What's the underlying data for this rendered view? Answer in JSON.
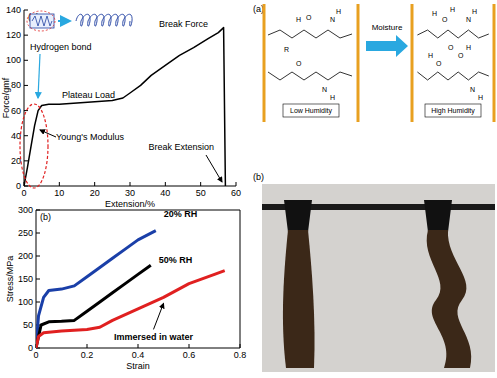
{
  "chart_data": [
    {
      "type": "line",
      "panel_label": "(a)",
      "x_label": "Extension/%",
      "y_label": "Force/gmf",
      "x": [
        0,
        1,
        2,
        3,
        4,
        5,
        7,
        10,
        15,
        20,
        25,
        28,
        30,
        33,
        36,
        40,
        44,
        48,
        52,
        55,
        56.5,
        57
      ],
      "values": [
        0,
        15,
        32,
        48,
        60,
        64,
        65,
        65,
        66,
        67,
        68,
        70,
        74,
        80,
        88,
        96,
        104,
        110,
        117,
        122,
        126,
        0
      ],
      "color": "#000000",
      "xlim": [
        0,
        60
      ],
      "ylim": [
        0,
        140
      ],
      "xticks": [
        0,
        10,
        20,
        30,
        40,
        50,
        60
      ],
      "yticks": [
        0,
        20,
        40,
        60,
        80,
        100,
        120,
        140
      ],
      "annotations": [
        "Break Force",
        "Plateau Load",
        "Hydrogen bond",
        "Young's Modulus",
        "Break Extension"
      ]
    },
    {
      "type": "line",
      "panel_label": "(b)",
      "x_label": "Strain",
      "y_label": "Stress/MPa",
      "xlim": [
        0,
        0.8
      ],
      "ylim": [
        0,
        300
      ],
      "xticks": [
        0,
        0.2,
        0.4,
        0.6,
        0.8
      ],
      "yticks": [
        0,
        50,
        100,
        150,
        200,
        250,
        300
      ],
      "series": [
        {
          "name": "20% RH",
          "color": "#1a3fa8",
          "x": [
            0,
            0.01,
            0.03,
            0.05,
            0.1,
            0.15,
            0.2,
            0.25,
            0.3,
            0.35,
            0.4,
            0.47
          ],
          "values": [
            0,
            70,
            110,
            125,
            128,
            135,
            155,
            175,
            195,
            215,
            235,
            255
          ]
        },
        {
          "name": "50% RH",
          "color": "#000000",
          "x": [
            0,
            0.02,
            0.05,
            0.1,
            0.15,
            0.2,
            0.25,
            0.3,
            0.35,
            0.4,
            0.45
          ],
          "values": [
            0,
            50,
            57,
            58,
            60,
            80,
            100,
            120,
            140,
            160,
            180
          ]
        },
        {
          "name": "Immersed in water",
          "color": "#e02020",
          "x": [
            0,
            0.01,
            0.03,
            0.1,
            0.2,
            0.25,
            0.3,
            0.4,
            0.5,
            0.6,
            0.7,
            0.74
          ],
          "values": [
            0,
            25,
            33,
            37,
            40,
            45,
            60,
            85,
            110,
            140,
            160,
            168
          ]
        }
      ]
    }
  ],
  "diagram": {
    "panel_label": "(a)",
    "arrow_label": "Moisture",
    "left_label": "Low Humidity",
    "right_label": "High Humidity",
    "left_atoms": [
      "H",
      "O",
      "N",
      "H",
      "R",
      "O",
      "N",
      "H"
    ],
    "right_atoms": [
      "H",
      "O",
      "H",
      "O",
      "N",
      "H",
      "O",
      "H",
      "O",
      "H",
      "N",
      "H"
    ]
  },
  "photo": {
    "panel_label": "(b)"
  }
}
